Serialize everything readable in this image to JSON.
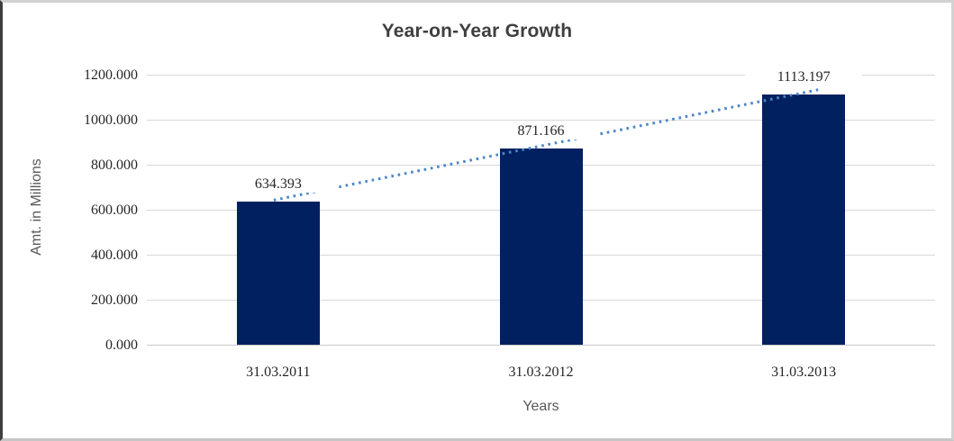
{
  "chart_data": {
    "type": "bar",
    "title": "Year-on-Year Growth",
    "xlabel": "Years",
    "ylabel": "Amt. in Millions",
    "categories": [
      "31.03.2011",
      "31.03.2012",
      "31.03.2013"
    ],
    "values": [
      634.393,
      871.166,
      1113.197
    ],
    "data_labels": [
      "634.393",
      "871.166",
      "1113.197"
    ],
    "yticks": [
      "0.000",
      "200.000",
      "400.000",
      "600.000",
      "800.000",
      "1000.000",
      "1200.000"
    ],
    "ytick_values": [
      0,
      200,
      400,
      600,
      800,
      1000,
      1200
    ],
    "ylim": [
      0,
      1200
    ],
    "grid": true,
    "legend_position": "none",
    "trendline": {
      "style": "dotted",
      "spans": "first-bar-top to last-bar-top"
    },
    "colors": {
      "bar": "#012060",
      "trendline": "#4a86c8",
      "gridline": "#d9d9d9",
      "axis_line": "#c9c9c9",
      "title_text": "#3f3f3f",
      "tick_text": "#262626",
      "axis_title_text": "#595959"
    }
  }
}
